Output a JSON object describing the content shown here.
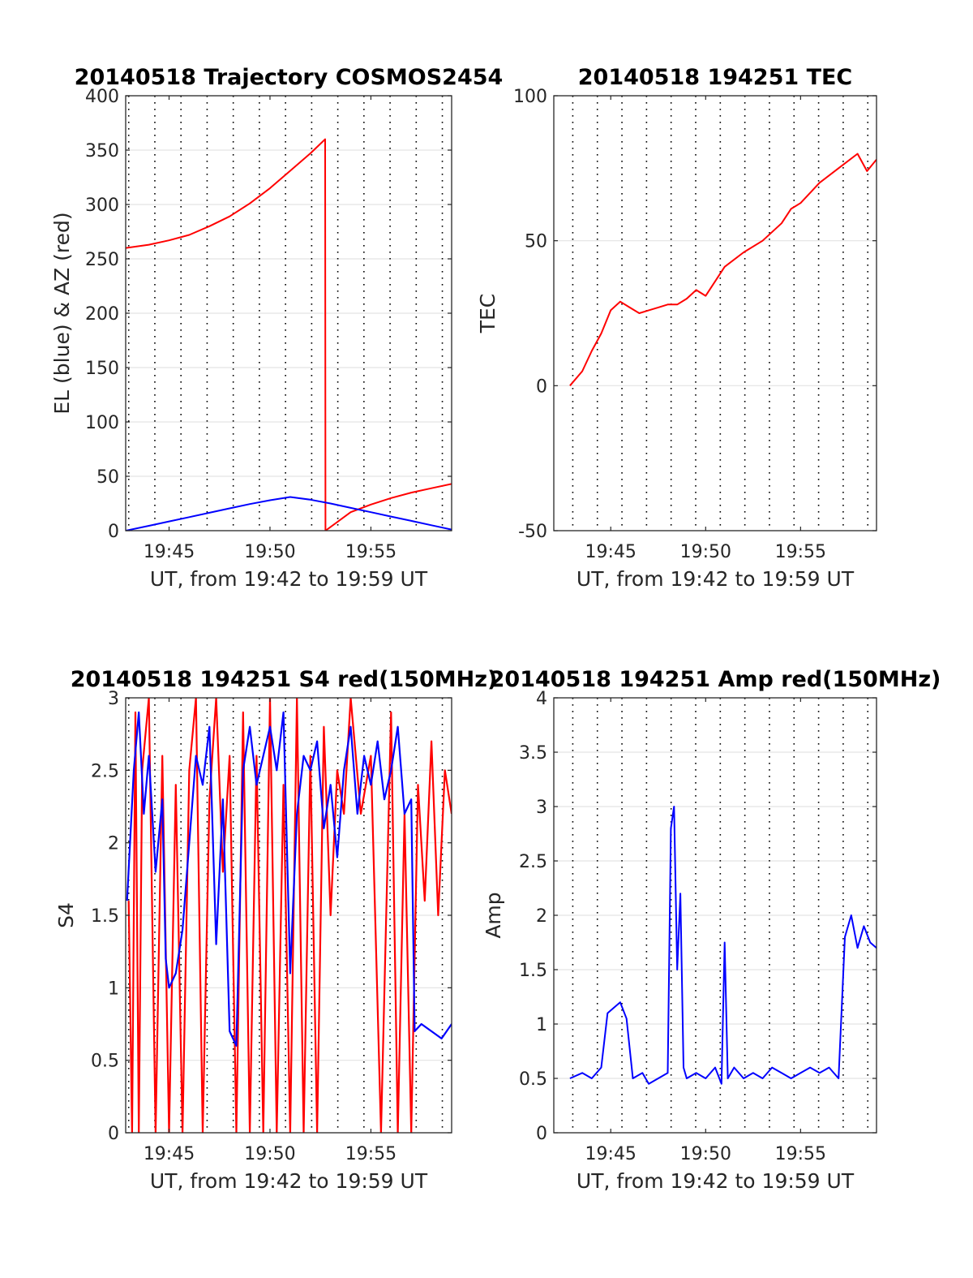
{
  "chart_data": [
    {
      "type": "line",
      "title": "20140518 Trajectory COSMOS2454",
      "xlabel": "UT, from 19:42 to 19:59 UT",
      "ylabel": "EL (blue) & AZ (red)",
      "xlim": [
        "19:42:51",
        "19:59:00"
      ],
      "ylim": [
        0,
        400
      ],
      "yticks": [
        0,
        50,
        100,
        150,
        200,
        250,
        300,
        350,
        400
      ],
      "xtick_labels": [
        "19:45",
        "19:50",
        "19:55"
      ],
      "grid": true,
      "series": [
        {
          "color": "#ff0000",
          "x": [
            "19:42:51",
            "19:44:00",
            "19:45:00",
            "19:46:00",
            "19:47:00",
            "19:48:00",
            "19:49:00",
            "19:50:00",
            "19:51:00",
            "19:52:00",
            "19:52:44",
            "19:52:45",
            "19:54:00",
            "19:55:00",
            "19:56:00",
            "19:57:00",
            "19:58:00",
            "19:59:00"
          ],
          "values": [
            260,
            263,
            267,
            272,
            280,
            289,
            301,
            315,
            331,
            347,
            360,
            0,
            17,
            24,
            30,
            35,
            39,
            43
          ]
        },
        {
          "color": "#0000ff",
          "x": [
            "19:42:51",
            "19:44:00",
            "19:45:00",
            "19:46:00",
            "19:47:00",
            "19:48:00",
            "19:49:00",
            "19:50:00",
            "19:51:00",
            "19:52:00",
            "19:53:00",
            "19:54:00",
            "19:55:00",
            "19:56:00",
            "19:57:00",
            "19:58:00",
            "19:59:00"
          ],
          "values": [
            0,
            4.5,
            8.5,
            12.5,
            16.5,
            20.5,
            24.5,
            28,
            31,
            28.5,
            25,
            21,
            17,
            13,
            9,
            5,
            1
          ]
        }
      ]
    },
    {
      "type": "line",
      "title": "20140518 194251 TEC",
      "xlabel": "UT, from 19:42 to 19:59 UT",
      "ylabel": "TEC",
      "xlim": [
        "19:42:00",
        "19:59:00"
      ],
      "ylim": [
        -50,
        100
      ],
      "yticks": [
        -50,
        0,
        50,
        100
      ],
      "xtick_labels": [
        "19:45",
        "19:50",
        "19:55"
      ],
      "grid": true,
      "series": [
        {
          "color": "#ff0000",
          "x": [
            "19:42:51",
            "19:43:30",
            "19:44:00",
            "19:44:30",
            "19:45:00",
            "19:45:30",
            "19:46:00",
            "19:46:30",
            "19:47:00",
            "19:47:30",
            "19:48:00",
            "19:48:30",
            "19:49:00",
            "19:49:30",
            "19:50:00",
            "19:50:30",
            "19:51:00",
            "19:52:00",
            "19:53:00",
            "19:54:00",
            "19:54:30",
            "19:55:00",
            "19:56:00",
            "19:57:00",
            "19:58:00",
            "19:58:30",
            "19:59:00"
          ],
          "values": [
            0,
            5,
            12,
            18,
            26,
            29,
            27,
            25,
            26,
            27,
            28,
            28,
            30,
            33,
            31,
            36,
            41,
            46,
            50,
            56,
            61,
            63,
            70,
            75,
            80,
            74,
            78
          ]
        }
      ]
    },
    {
      "type": "line",
      "title": "20140518 194251 S4 red(150MHz)",
      "xlabel": "UT, from 19:42 to 19:59 UT",
      "ylabel": "S4",
      "xlim": [
        "19:42:51",
        "19:59:00"
      ],
      "ylim": [
        0,
        3
      ],
      "yticks": [
        0,
        0.5,
        1,
        1.5,
        2,
        2.5,
        3
      ],
      "xtick_labels": [
        "19:45",
        "19:50",
        "19:55"
      ],
      "grid": true,
      "series": [
        {
          "color": "#ff0000",
          "x": [
            "19:43:00",
            "19:43:10",
            "19:43:20",
            "19:43:30",
            "19:43:40",
            "19:44:00",
            "19:44:20",
            "19:44:40",
            "19:45:00",
            "19:45:20",
            "19:45:40",
            "19:46:00",
            "19:46:20",
            "19:46:40",
            "19:47:00",
            "19:47:20",
            "19:47:40",
            "19:48:00",
            "19:48:20",
            "19:48:40",
            "19:49:00",
            "19:49:20",
            "19:49:40",
            "19:50:00",
            "19:50:20",
            "19:50:40",
            "19:51:00",
            "19:51:20",
            "19:51:40",
            "19:52:00",
            "19:52:20",
            "19:52:40",
            "19:53:00",
            "19:53:20",
            "19:53:40",
            "19:54:00",
            "19:54:30",
            "19:55:00",
            "19:55:30",
            "19:56:00",
            "19:56:20",
            "19:56:40",
            "19:57:00",
            "19:57:20",
            "19:57:40",
            "19:58:00",
            "19:58:20",
            "19:58:40",
            "19:59:00"
          ],
          "values": [
            1.6,
            0,
            2.9,
            0,
            2.5,
            3,
            0,
            2.6,
            0,
            2.4,
            0,
            2.5,
            3,
            0,
            2.3,
            3,
            1.8,
            2.6,
            0,
            2.9,
            0,
            2.6,
            0,
            3,
            0,
            2.4,
            0,
            3,
            0,
            2.6,
            0,
            2.8,
            1.5,
            2.5,
            2.2,
            3,
            2.2,
            2.6,
            0,
            2.9,
            0,
            2.2,
            0,
            2.4,
            1.6,
            2.7,
            1.5,
            2.5,
            2.2
          ]
        },
        {
          "color": "#0000ff",
          "x": [
            "19:42:55",
            "19:43:15",
            "19:43:30",
            "19:43:45",
            "19:44:00",
            "19:44:20",
            "19:44:40",
            "19:44:50",
            "19:45:00",
            "19:45:20",
            "19:45:40",
            "19:46:00",
            "19:46:20",
            "19:46:40",
            "19:47:00",
            "19:47:20",
            "19:47:40",
            "19:48:00",
            "19:48:20",
            "19:48:40",
            "19:49:00",
            "19:49:20",
            "19:49:40",
            "19:50:00",
            "19:50:20",
            "19:50:40",
            "19:51:00",
            "19:51:20",
            "19:51:40",
            "19:52:00",
            "19:52:20",
            "19:52:40",
            "19:53:00",
            "19:53:20",
            "19:53:40",
            "19:54:00",
            "19:54:20",
            "19:54:40",
            "19:55:00",
            "19:55:20",
            "19:55:40",
            "19:56:00",
            "19:56:20",
            "19:56:40",
            "19:57:00",
            "19:57:10",
            "19:57:30",
            "19:58:00",
            "19:58:30",
            "19:59:00"
          ],
          "values": [
            1.6,
            2.5,
            2.9,
            2.2,
            2.6,
            1.8,
            2.3,
            1.2,
            1.0,
            1.1,
            1.4,
            2.0,
            2.6,
            2.4,
            2.8,
            1.3,
            2.3,
            0.7,
            0.6,
            2.5,
            2.8,
            2.4,
            2.6,
            2.8,
            2.5,
            2.9,
            1.1,
            2.2,
            2.6,
            2.5,
            2.7,
            2.1,
            2.4,
            1.9,
            2.5,
            2.8,
            2.2,
            2.6,
            2.4,
            2.7,
            2.3,
            2.5,
            2.8,
            2.2,
            2.3,
            0.7,
            0.75,
            0.7,
            0.65,
            0.75
          ]
        }
      ]
    },
    {
      "type": "line",
      "title": "20140518 194251 Amp red(150MHz)",
      "xlabel": "UT, from 19:42 to 19:59 UT",
      "ylabel": "Amp",
      "xlim": [
        "19:42:00",
        "19:59:00"
      ],
      "ylim": [
        0,
        4
      ],
      "yticks": [
        0,
        0.5,
        1,
        1.5,
        2,
        2.5,
        3,
        3.5,
        4
      ],
      "xtick_labels": [
        "19:45",
        "19:50",
        "19:55"
      ],
      "grid": true,
      "series": [
        {
          "color": "#0000ff",
          "x": [
            "19:42:51",
            "19:43:30",
            "19:44:00",
            "19:44:30",
            "19:44:50",
            "19:45:10",
            "19:45:30",
            "19:45:50",
            "19:46:10",
            "19:46:40",
            "19:47:00",
            "19:47:30",
            "19:48:00",
            "19:48:10",
            "19:48:20",
            "19:48:30",
            "19:48:40",
            "19:48:50",
            "19:49:00",
            "19:49:30",
            "19:50:00",
            "19:50:30",
            "19:50:50",
            "19:51:00",
            "19:51:10",
            "19:51:30",
            "19:52:00",
            "19:52:30",
            "19:53:00",
            "19:53:30",
            "19:54:00",
            "19:54:30",
            "19:55:00",
            "19:55:30",
            "19:56:00",
            "19:56:30",
            "19:57:00",
            "19:57:20",
            "19:57:40",
            "19:58:00",
            "19:58:20",
            "19:58:40",
            "19:59:00"
          ],
          "values": [
            0.5,
            0.55,
            0.5,
            0.6,
            1.1,
            1.15,
            1.2,
            1.05,
            0.5,
            0.55,
            0.45,
            0.5,
            0.55,
            2.8,
            3.0,
            1.5,
            2.2,
            0.6,
            0.5,
            0.55,
            0.5,
            0.6,
            0.45,
            1.75,
            0.5,
            0.6,
            0.5,
            0.55,
            0.5,
            0.6,
            0.55,
            0.5,
            0.55,
            0.6,
            0.55,
            0.6,
            0.5,
            1.8,
            2.0,
            1.7,
            1.9,
            1.75,
            1.7
          ]
        }
      ]
    }
  ]
}
